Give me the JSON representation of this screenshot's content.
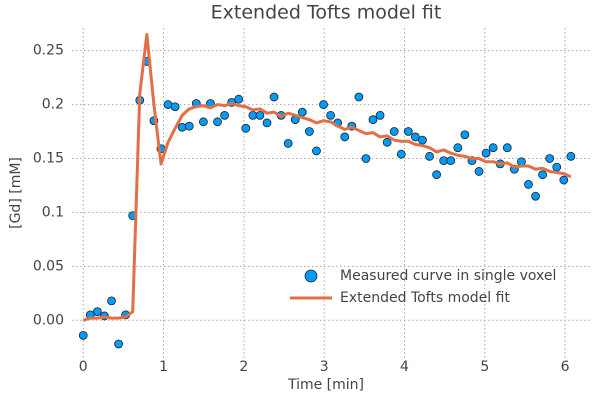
{
  "chart_data": {
    "type": "scatter",
    "title": "Extended Tofts model fit",
    "x_label": "Time [min]",
    "y_label": "[Gd] [mM]",
    "x": [
      0,
      0.088,
      0.176,
      0.264,
      0.352,
      0.44,
      0.528,
      0.616,
      0.704,
      0.792,
      0.88,
      0.968,
      1.056,
      1.144,
      1.232,
      1.32,
      1.408,
      1.496,
      1.584,
      1.672,
      1.76,
      1.848,
      1.936,
      2.024,
      2.112,
      2.2,
      2.288,
      2.376,
      2.464,
      2.552,
      2.64,
      2.728,
      2.816,
      2.904,
      2.992,
      3.08,
      3.168,
      3.256,
      3.344,
      3.432,
      3.52,
      3.608,
      3.696,
      3.784,
      3.872,
      3.96,
      4.048,
      4.136,
      4.224,
      4.312,
      4.4,
      4.488,
      4.576,
      4.664,
      4.752,
      4.84,
      4.928,
      5.016,
      5.104,
      5.192,
      5.28,
      5.368,
      5.456,
      5.544,
      5.632,
      5.72,
      5.808,
      5.896,
      5.984,
      6.072
    ],
    "series": [
      {
        "name": "Measured curve in single voxel",
        "color": "#009afa",
        "type": "scatter",
        "values": [
          -0.014,
          0.005,
          0.008,
          0.004,
          0.018,
          -0.022,
          0.005,
          0.097,
          0.204,
          0.24,
          0.185,
          0.159,
          0.2,
          0.198,
          0.179,
          0.18,
          0.201,
          0.184,
          0.201,
          0.184,
          0.19,
          0.202,
          0.205,
          0.178,
          0.19,
          0.19,
          0.183,
          0.207,
          0.19,
          0.164,
          0.186,
          0.193,
          0.175,
          0.157,
          0.2,
          0.19,
          0.183,
          0.17,
          0.18,
          0.207,
          0.15,
          0.186,
          0.19,
          0.165,
          0.175,
          0.154,
          0.175,
          0.17,
          0.167,
          0.152,
          0.135,
          0.148,
          0.148,
          0.16,
          0.172,
          0.148,
          0.138,
          0.155,
          0.16,
          0.145,
          0.16,
          0.14,
          0.147,
          0.126,
          0.115,
          0.135,
          0.15,
          0.142,
          0.13,
          0.152
        ]
      },
      {
        "name": "Extended Tofts model fit",
        "color": "#e26f46",
        "type": "line",
        "values": [
          0,
          0.002,
          0.002,
          0.003,
          0.002,
          0.002,
          0.003,
          0.008,
          0.21,
          0.265,
          0.2,
          0.145,
          0.165,
          0.178,
          0.19,
          0.196,
          0.198,
          0.199,
          0.197,
          0.2,
          0.199,
          0.201,
          0.199,
          0.198,
          0.195,
          0.196,
          0.192,
          0.193,
          0.189,
          0.192,
          0.19,
          0.188,
          0.186,
          0.183,
          0.185,
          0.184,
          0.18,
          0.177,
          0.179,
          0.176,
          0.173,
          0.174,
          0.17,
          0.171,
          0.167,
          0.166,
          0.166,
          0.163,
          0.162,
          0.16,
          0.156,
          0.158,
          0.155,
          0.153,
          0.152,
          0.15,
          0.15,
          0.147,
          0.147,
          0.145,
          0.146,
          0.142,
          0.143,
          0.143,
          0.14,
          0.141,
          0.138,
          0.137,
          0.136,
          0.133
        ]
      }
    ],
    "xlim": [
      -0.14,
      6.31
    ],
    "ylim": [
      -0.035,
      0.271
    ],
    "xticks": [
      0,
      1,
      2,
      3,
      4,
      5,
      6
    ],
    "yticks": [
      {
        "value": 0,
        "label": "0.00"
      },
      {
        "value": 0.05,
        "label": "0.05"
      },
      0.1,
      0.15,
      0.2,
      0.25
    ],
    "grid": true,
    "legend": "lower right"
  }
}
